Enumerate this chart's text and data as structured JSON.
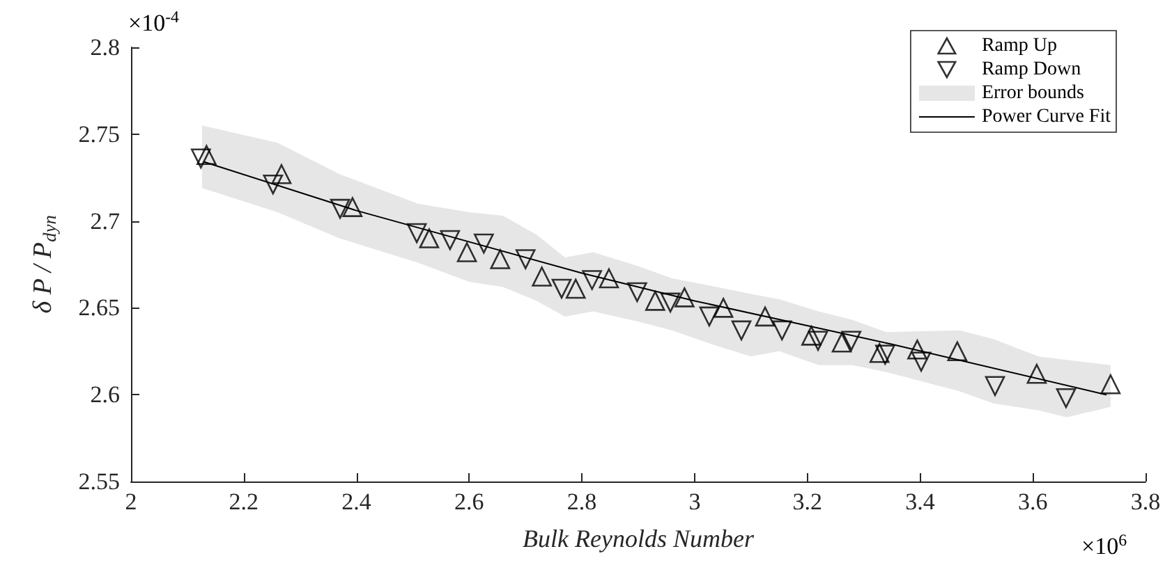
{
  "chart_data": {
    "type": "scatter",
    "xlabel": "Bulk Reynolds Number",
    "ylabel": "δ P / P$_{dyn}$",
    "annotations": [
      "×10$^{-4}$",
      "×10$^{6}$"
    ],
    "xlim": [
      2,
      3.8
    ],
    "xticks": [
      2,
      2.2,
      2.4,
      2.6,
      2.8,
      3,
      3.2,
      3.4,
      3.6,
      3.8
    ],
    "ylim": [
      2.55,
      2.8
    ],
    "yticks": [
      2.55,
      2.6,
      2.65,
      2.7,
      2.75,
      2.8
    ],
    "grid": false,
    "legend": "top right",
    "series": [
      {
        "name": "Ramp Up",
        "marker": "triangle",
        "color": "#000000",
        "x": [
          2.134,
          2.267,
          2.393,
          2.529,
          2.596,
          2.655,
          2.729,
          2.789,
          2.848,
          2.93,
          2.982,
          3.051,
          3.125,
          3.207,
          3.261,
          3.328,
          3.395,
          3.466,
          3.607,
          3.738
        ],
        "values": [
          2.738,
          2.727,
          2.708,
          2.69,
          2.682,
          2.678,
          2.668,
          2.661,
          2.667,
          2.654,
          2.656,
          2.65,
          2.645,
          2.634,
          2.63,
          2.624,
          2.626,
          2.625,
          2.612,
          2.606
        ]
      },
      {
        "name": "Ramp Down",
        "marker": "triangle-down",
        "color": "#000000",
        "x": [
          2.124,
          2.252,
          2.371,
          2.507,
          2.566,
          2.626,
          2.7,
          2.764,
          2.818,
          2.898,
          2.957,
          3.026,
          3.083,
          3.155,
          3.219,
          3.278,
          3.338,
          3.402,
          3.533,
          3.659
        ],
        "values": [
          2.736,
          2.721,
          2.707,
          2.693,
          2.689,
          2.687,
          2.678,
          2.661,
          2.666,
          2.659,
          2.653,
          2.645,
          2.637,
          2.637,
          2.631,
          2.631,
          2.623,
          2.619,
          2.605,
          2.598
        ]
      },
      {
        "name": "Error bounds",
        "type": "area",
        "color": "#e6e6e6",
        "values": [
          null,
          null,
          null,
          null,
          null,
          null,
          null,
          null,
          null,
          null,
          null,
          null,
          null,
          null,
          null,
          null,
          null,
          null,
          null,
          null,
          null,
          null
        ],
        "x": [
          2.126,
          2.26,
          2.37,
          2.509,
          2.6,
          2.66,
          2.72,
          2.77,
          2.82,
          2.9,
          2.96,
          3.04,
          3.1,
          3.15,
          3.22,
          3.28,
          3.34,
          3.47,
          3.53,
          3.61,
          3.66,
          3.738
        ],
        "upper": [
          2.755,
          2.745,
          2.727,
          2.71,
          2.705,
          2.703,
          2.692,
          2.679,
          2.682,
          2.674,
          2.667,
          2.662,
          2.658,
          2.655,
          2.648,
          2.643,
          2.636,
          2.637,
          2.632,
          2.622,
          2.62,
          2.617
        ],
        "lower": [
          2.719,
          2.705,
          2.69,
          2.676,
          2.665,
          2.662,
          2.654,
          2.645,
          2.648,
          2.642,
          2.637,
          2.628,
          2.622,
          2.625,
          2.617,
          2.617,
          2.613,
          2.602,
          2.595,
          2.591,
          2.587,
          2.593
        ]
      },
      {
        "name": "Power Curve Fit",
        "type": "line",
        "marker": "none",
        "line_style": "solid",
        "color": "#000000",
        "x": [
          2.13,
          2.4,
          2.8,
          3.0,
          3.35,
          3.73
        ],
        "values": [
          2.734,
          2.706,
          2.67,
          2.654,
          2.629,
          2.6
        ]
      }
    ]
  }
}
